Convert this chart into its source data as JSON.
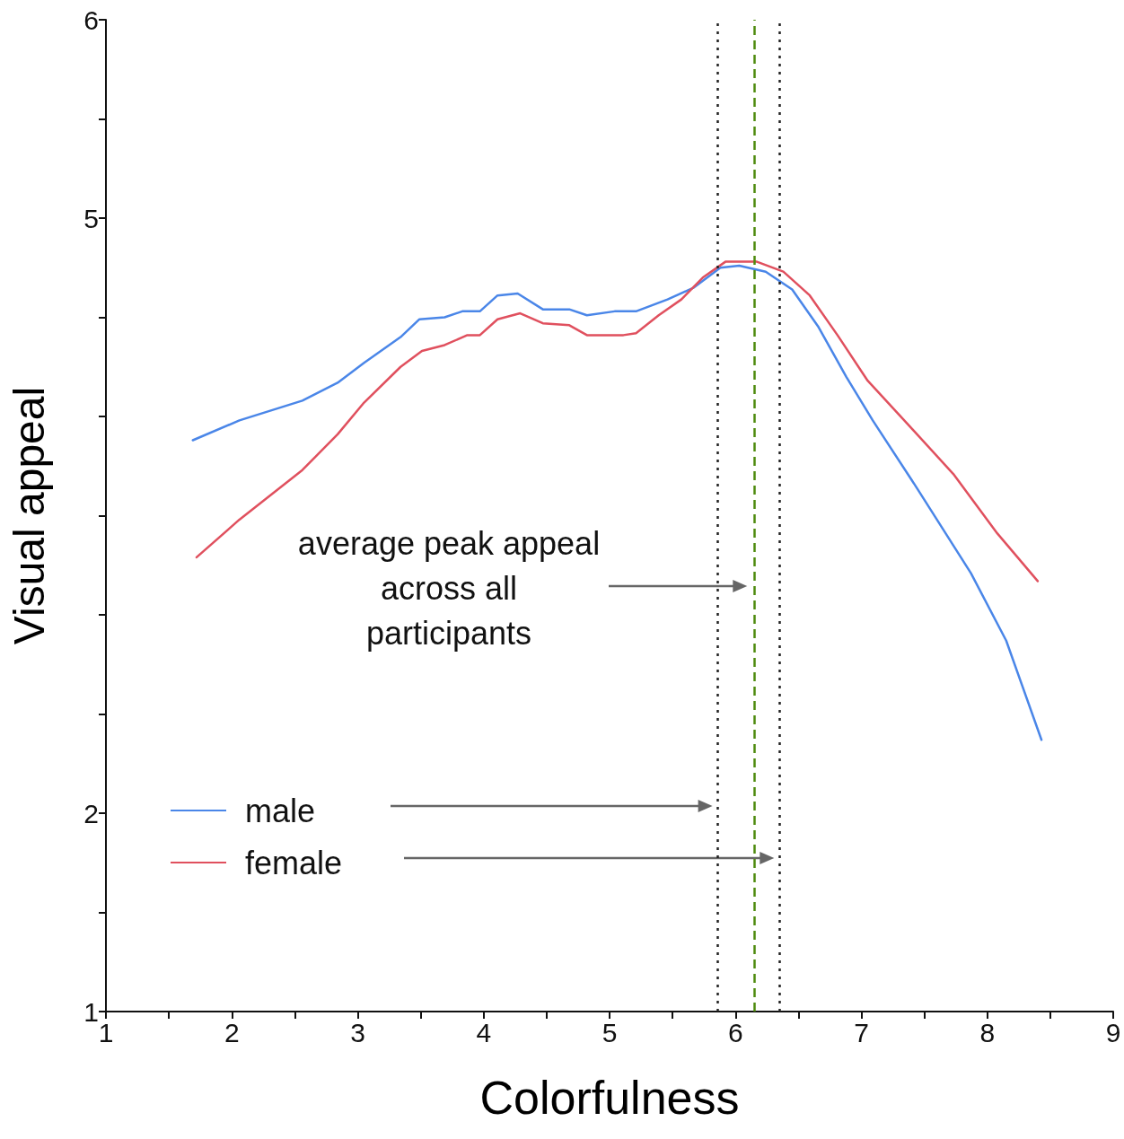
{
  "chart_data": {
    "type": "line",
    "xlabel": "Colorfulness",
    "ylabel": "Visual appeal",
    "xlim": [
      1,
      9
    ],
    "xticks": [
      1,
      {
        "value": 1.5,
        "label": null
      },
      2,
      {
        "value": 2.5,
        "label": null
      },
      3,
      {
        "value": 3.5,
        "label": null
      },
      4,
      {
        "value": 4.5,
        "label": null
      },
      5,
      {
        "value": 5.5,
        "label": null
      },
      6,
      {
        "value": 6.5,
        "label": null
      },
      7,
      {
        "value": 7.5,
        "label": null
      },
      8,
      {
        "value": 8.5,
        "label": null
      },
      9
    ],
    "ylim": [
      1,
      6
    ],
    "yticks": [
      1,
      {
        "value": 1.5,
        "label": null
      },
      2,
      {
        "value": 2.5,
        "label": null
      },
      {
        "value": 3,
        "label": null
      },
      {
        "value": 3.5,
        "label": null
      },
      {
        "value": 4,
        "label": null
      },
      {
        "value": 4.5,
        "label": null
      },
      5,
      {
        "value": 5.5,
        "label": null
      },
      6
    ],
    "series": [
      {
        "name": "male",
        "color": "#4a86e8",
        "x": [
          1.69,
          2.06,
          2.56,
          2.84,
          3.05,
          3.34,
          3.49,
          3.69,
          3.83,
          3.97,
          4.11,
          4.27,
          4.47,
          4.68,
          4.82,
          5.04,
          5.21,
          5.46,
          5.67,
          5.88,
          6.03,
          6.24,
          6.45,
          6.66,
          6.88,
          7.09,
          7.44,
          7.87,
          8.15,
          8.43
        ],
        "values": [
          3.88,
          3.98,
          4.08,
          4.17,
          4.27,
          4.4,
          4.49,
          4.5,
          4.53,
          4.53,
          4.61,
          4.62,
          4.54,
          4.54,
          4.51,
          4.53,
          4.53,
          4.59,
          4.65,
          4.75,
          4.76,
          4.73,
          4.64,
          4.45,
          4.2,
          3.98,
          3.64,
          3.21,
          2.87,
          2.37
        ]
      },
      {
        "name": "female",
        "color": "#e0505e",
        "x": [
          1.72,
          2.06,
          2.56,
          2.84,
          3.05,
          3.34,
          3.51,
          3.69,
          3.87,
          3.97,
          4.11,
          4.29,
          4.47,
          4.68,
          4.82,
          5.11,
          5.21,
          5.39,
          5.57,
          5.74,
          5.92,
          6.17,
          6.38,
          6.59,
          6.81,
          7.05,
          7.37,
          7.73,
          8.08,
          8.4
        ],
        "values": [
          3.29,
          3.48,
          3.73,
          3.91,
          4.07,
          4.25,
          4.33,
          4.36,
          4.41,
          4.41,
          4.49,
          4.52,
          4.47,
          4.46,
          4.41,
          4.41,
          4.42,
          4.51,
          4.59,
          4.7,
          4.78,
          4.78,
          4.73,
          4.61,
          4.41,
          4.18,
          3.96,
          3.71,
          3.41,
          3.17
        ]
      }
    ],
    "ref_lines": [
      {
        "axis": "x",
        "value": 6.15,
        "color": "#4d8a0c",
        "line_style": "dashed"
      },
      {
        "axis": "x",
        "value": 5.86,
        "color": "#222222",
        "line_style": "dotted"
      },
      {
        "axis": "x",
        "value": 6.35,
        "color": "#222222",
        "line_style": "dotted"
      }
    ],
    "annotations": [
      "average peak appeal across all participants"
    ],
    "legend": "bottom left",
    "grid": false,
    "marker": "none",
    "line_style": "solid"
  }
}
